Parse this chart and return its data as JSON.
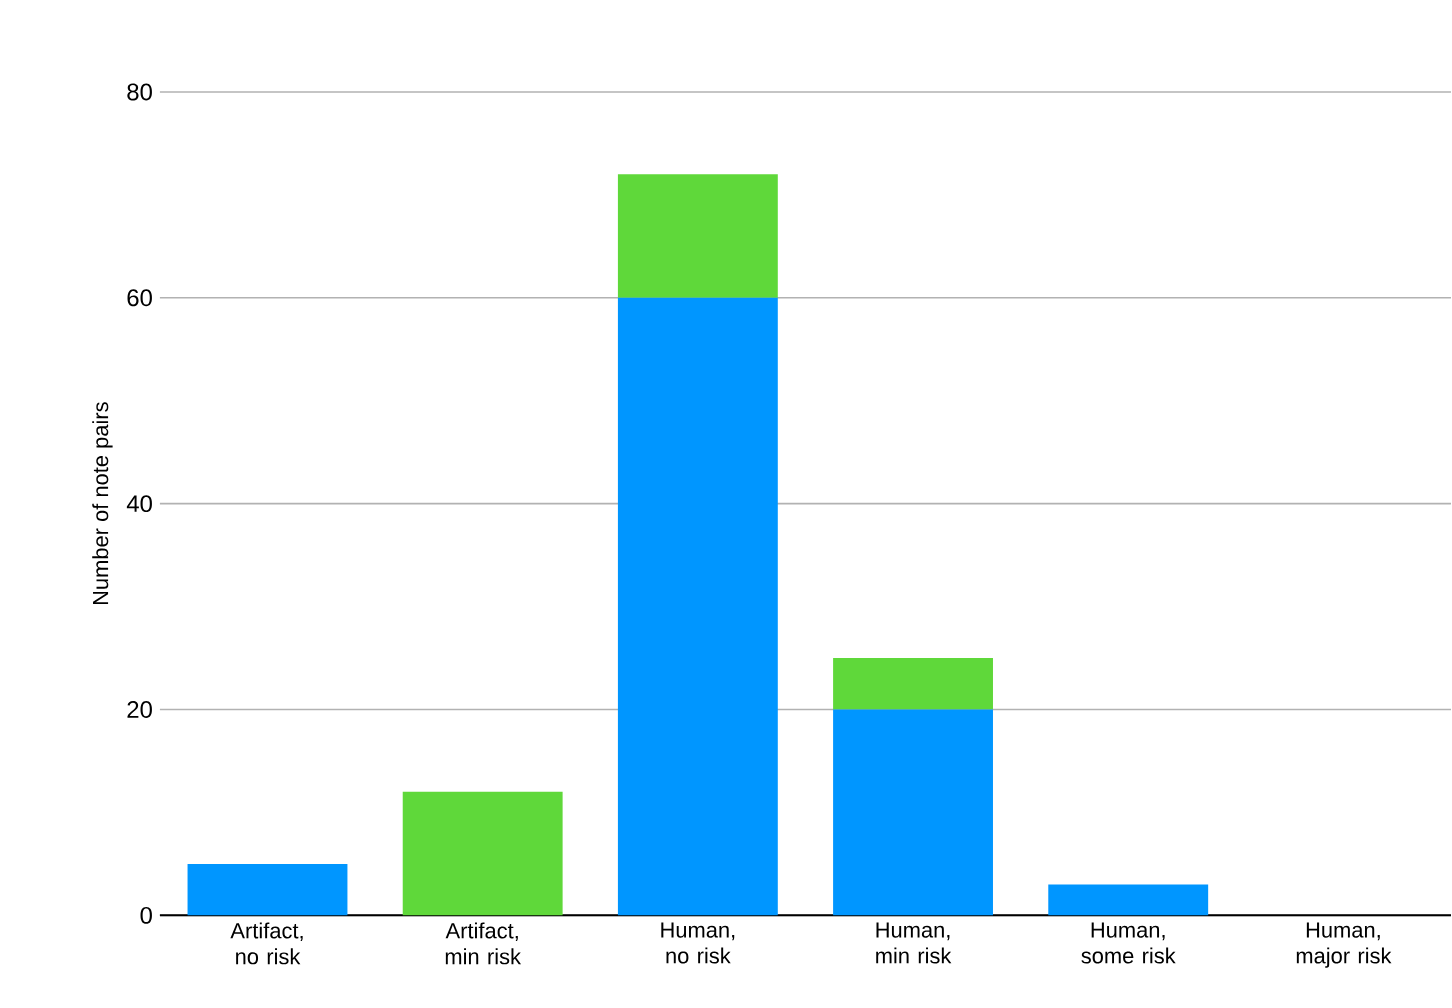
{
  "chart_data": {
    "type": "bar",
    "ylabel": "Number of note pairs",
    "categories": [
      "Artifact, no risk",
      "Artifact, min risk",
      "Human, no risk",
      "Human, min risk",
      "Human, some risk",
      "Human, major risk"
    ],
    "stacked": true,
    "series": [
      {
        "color": "#0096ff",
        "values": [
          5,
          0,
          60,
          20,
          3,
          0
        ]
      },
      {
        "color": "#5fd83a",
        "values": [
          0,
          12,
          12,
          5,
          0,
          0
        ]
      }
    ],
    "ylim": [
      0,
      80
    ],
    "yticks": [
      0,
      20,
      40,
      60,
      80
    ],
    "grid": "y"
  }
}
